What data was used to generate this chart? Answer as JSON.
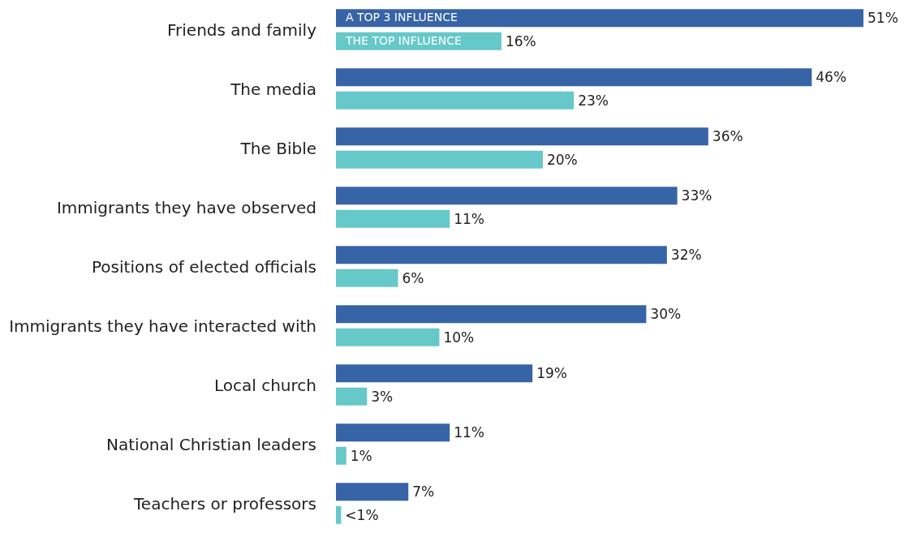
{
  "chart_data": {
    "type": "bar",
    "orientation": "horizontal",
    "legend": false,
    "categories": [
      "Friends and family",
      "The media",
      "The Bible",
      "Immigrants they have observed",
      "Positions of elected officials",
      "Immigrants they have interacted with",
      "Local church",
      "National Christian leaders",
      "Teachers or professors"
    ],
    "series": [
      {
        "name": "A TOP 3 INFLUENCE",
        "color": "#3764a6",
        "values": [
          51,
          46,
          36,
          33,
          32,
          30,
          19,
          11,
          7
        ],
        "value_labels": [
          "51%",
          "46%",
          "36%",
          "33%",
          "32%",
          "30%",
          "19%",
          "11%",
          "7%"
        ]
      },
      {
        "name": "THE TOP INFLUENCE",
        "color": "#66c8c8",
        "values": [
          16,
          23,
          20,
          11,
          6,
          10,
          3,
          1,
          0.5
        ],
        "value_labels": [
          "16%",
          "23%",
          "20%",
          "11%",
          "6%",
          "10%",
          "3%",
          "1%",
          "<1%"
        ]
      }
    ]
  }
}
